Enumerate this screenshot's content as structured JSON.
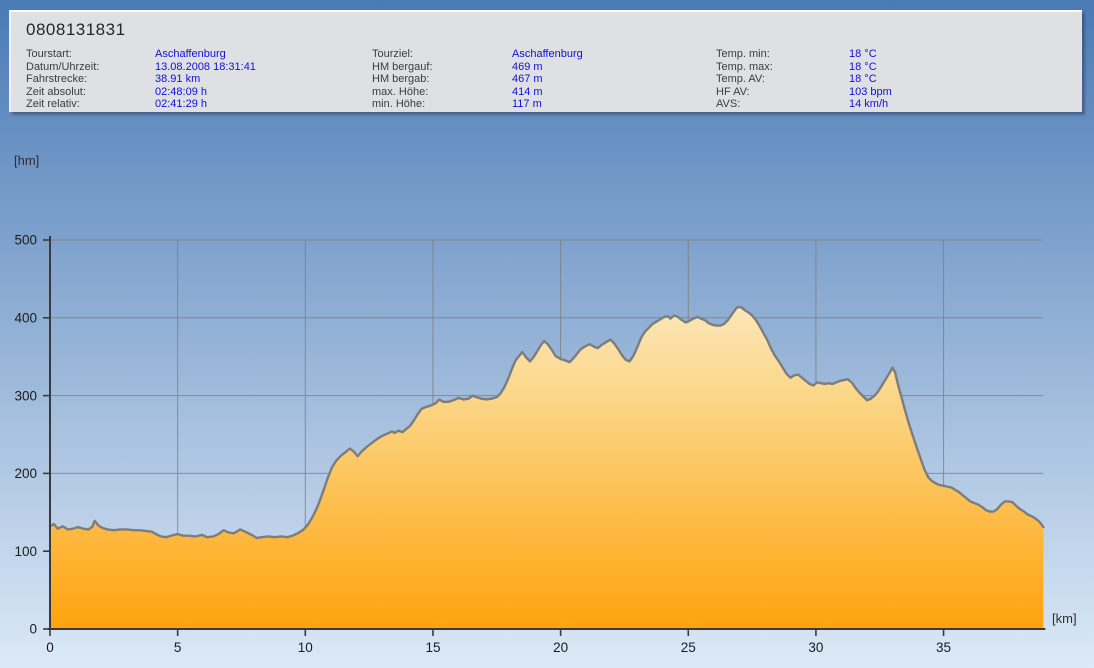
{
  "header": {
    "title": "0808131831",
    "columns": [
      {
        "rows": [
          {
            "label": "Tourstart:",
            "value": "Aschaffenburg"
          },
          {
            "label": "Datum/Uhrzeit:",
            "value": "13.08.2008 18:31:41"
          },
          {
            "label": "Fahrstrecke:",
            "value": "38.91 km"
          },
          {
            "label": "Zeit absolut:",
            "value": "02:48:09 h"
          },
          {
            "label": "Zeit relativ:",
            "value": "02:41:29 h"
          }
        ]
      },
      {
        "rows": [
          {
            "label": "Tourziel:",
            "value": "Aschaffenburg"
          },
          {
            "label": "HM bergauf:",
            "value": "469 m"
          },
          {
            "label": "HM bergab:",
            "value": "467 m"
          },
          {
            "label": "max. Höhe:",
            "value": "414 m"
          },
          {
            "label": "min. Höhe:",
            "value": "117 m"
          }
        ]
      },
      {
        "rows": [
          {
            "label": "Temp. min:",
            "value": "18 °C"
          },
          {
            "label": "Temp. max:",
            "value": "18 °C"
          },
          {
            "label": "Temp. AV:",
            "value": "18 °C"
          },
          {
            "label": "HF AV:",
            "value": "103 bpm"
          },
          {
            "label": "AVS:",
            "value": "14 km/h"
          }
        ]
      }
    ]
  },
  "chart_data": {
    "type": "area",
    "title": "",
    "xlabel": "[km]",
    "ylabel": "[hm]",
    "xlim": [
      0,
      38.91
    ],
    "ylim": [
      0,
      500
    ],
    "x_ticks": [
      0,
      5,
      10,
      15,
      20,
      25,
      30,
      35
    ],
    "y_ticks": [
      0,
      100,
      200,
      300,
      400,
      500
    ],
    "grid": true,
    "legend_position": "none",
    "series": [
      {
        "name": "elevation-profile",
        "points": [
          [
            0,
            132
          ],
          [
            0.15,
            135
          ],
          [
            0.3,
            129
          ],
          [
            0.5,
            132
          ],
          [
            0.7,
            128
          ],
          [
            0.9,
            129
          ],
          [
            1.1,
            131
          ],
          [
            1.3,
            129
          ],
          [
            1.5,
            128
          ],
          [
            1.65,
            131
          ],
          [
            1.75,
            139
          ],
          [
            1.9,
            133
          ],
          [
            2.05,
            130
          ],
          [
            2.25,
            128
          ],
          [
            2.5,
            127
          ],
          [
            2.75,
            128
          ],
          [
            3.0,
            128
          ],
          [
            3.25,
            127
          ],
          [
            3.5,
            127
          ],
          [
            3.75,
            126
          ],
          [
            4.0,
            125
          ],
          [
            4.15,
            122
          ],
          [
            4.35,
            119
          ],
          [
            4.55,
            118
          ],
          [
            4.75,
            120
          ],
          [
            5.0,
            122
          ],
          [
            5.2,
            120
          ],
          [
            5.45,
            120
          ],
          [
            5.7,
            119
          ],
          [
            5.95,
            121
          ],
          [
            6.15,
            118
          ],
          [
            6.4,
            119
          ],
          [
            6.6,
            122
          ],
          [
            6.8,
            127
          ],
          [
            7.0,
            124
          ],
          [
            7.2,
            123
          ],
          [
            7.45,
            128
          ],
          [
            7.65,
            125
          ],
          [
            7.9,
            121
          ],
          [
            8.1,
            117
          ],
          [
            8.3,
            118
          ],
          [
            8.55,
            119
          ],
          [
            8.8,
            118
          ],
          [
            9.05,
            119
          ],
          [
            9.3,
            118
          ],
          [
            9.5,
            120
          ],
          [
            9.7,
            123
          ],
          [
            9.9,
            127
          ],
          [
            10.1,
            134
          ],
          [
            10.3,
            145
          ],
          [
            10.5,
            159
          ],
          [
            10.7,
            177
          ],
          [
            10.9,
            196
          ],
          [
            11.05,
            208
          ],
          [
            11.2,
            216
          ],
          [
            11.4,
            223
          ],
          [
            11.6,
            228
          ],
          [
            11.75,
            232
          ],
          [
            11.9,
            228
          ],
          [
            12.05,
            222
          ],
          [
            12.2,
            228
          ],
          [
            12.4,
            234
          ],
          [
            12.6,
            239
          ],
          [
            12.8,
            244
          ],
          [
            13.0,
            248
          ],
          [
            13.2,
            251
          ],
          [
            13.4,
            254
          ],
          [
            13.5,
            252
          ],
          [
            13.65,
            255
          ],
          [
            13.8,
            253
          ],
          [
            13.95,
            257
          ],
          [
            14.1,
            261
          ],
          [
            14.25,
            268
          ],
          [
            14.4,
            276
          ],
          [
            14.55,
            283
          ],
          [
            14.7,
            285
          ],
          [
            14.9,
            287
          ],
          [
            15.1,
            290
          ],
          [
            15.25,
            295
          ],
          [
            15.4,
            292
          ],
          [
            15.6,
            292
          ],
          [
            15.8,
            294
          ],
          [
            16.0,
            297
          ],
          [
            16.2,
            295
          ],
          [
            16.4,
            296
          ],
          [
            16.55,
            300
          ],
          [
            16.7,
            298
          ],
          [
            16.9,
            296
          ],
          [
            17.1,
            295
          ],
          [
            17.3,
            296
          ],
          [
            17.5,
            298
          ],
          [
            17.65,
            303
          ],
          [
            17.8,
            311
          ],
          [
            17.95,
            322
          ],
          [
            18.1,
            335
          ],
          [
            18.25,
            346
          ],
          [
            18.4,
            352
          ],
          [
            18.5,
            356
          ],
          [
            18.65,
            349
          ],
          [
            18.8,
            344
          ],
          [
            18.95,
            350
          ],
          [
            19.1,
            358
          ],
          [
            19.25,
            366
          ],
          [
            19.35,
            370
          ],
          [
            19.5,
            366
          ],
          [
            19.65,
            359
          ],
          [
            19.8,
            351
          ],
          [
            20.0,
            347
          ],
          [
            20.2,
            345
          ],
          [
            20.35,
            343
          ],
          [
            20.5,
            348
          ],
          [
            20.65,
            354
          ],
          [
            20.8,
            360
          ],
          [
            21.0,
            364
          ],
          [
            21.15,
            366
          ],
          [
            21.3,
            363
          ],
          [
            21.45,
            361
          ],
          [
            21.6,
            365
          ],
          [
            21.75,
            368
          ],
          [
            21.95,
            372
          ],
          [
            22.1,
            367
          ],
          [
            22.25,
            360
          ],
          [
            22.4,
            352
          ],
          [
            22.55,
            346
          ],
          [
            22.7,
            344
          ],
          [
            22.85,
            351
          ],
          [
            23.0,
            362
          ],
          [
            23.15,
            374
          ],
          [
            23.3,
            382
          ],
          [
            23.45,
            387
          ],
          [
            23.6,
            392
          ],
          [
            23.75,
            395
          ],
          [
            23.9,
            398
          ],
          [
            24.05,
            401
          ],
          [
            24.2,
            402
          ],
          [
            24.3,
            399
          ],
          [
            24.45,
            403
          ],
          [
            24.6,
            401
          ],
          [
            24.75,
            397
          ],
          [
            24.9,
            394
          ],
          [
            25.05,
            396
          ],
          [
            25.2,
            399
          ],
          [
            25.35,
            401
          ],
          [
            25.5,
            399
          ],
          [
            25.65,
            397
          ],
          [
            25.8,
            393
          ],
          [
            25.95,
            391
          ],
          [
            26.1,
            390
          ],
          [
            26.25,
            390
          ],
          [
            26.4,
            392
          ],
          [
            26.55,
            397
          ],
          [
            26.7,
            404
          ],
          [
            26.85,
            411
          ],
          [
            26.95,
            414
          ],
          [
            27.1,
            413
          ],
          [
            27.2,
            410
          ],
          [
            27.35,
            407
          ],
          [
            27.5,
            403
          ],
          [
            27.65,
            397
          ],
          [
            27.8,
            389
          ],
          [
            27.95,
            380
          ],
          [
            28.1,
            371
          ],
          [
            28.25,
            360
          ],
          [
            28.4,
            351
          ],
          [
            28.55,
            344
          ],
          [
            28.7,
            336
          ],
          [
            28.85,
            328
          ],
          [
            29.0,
            323
          ],
          [
            29.15,
            326
          ],
          [
            29.3,
            327
          ],
          [
            29.45,
            323
          ],
          [
            29.6,
            319
          ],
          [
            29.75,
            315
          ],
          [
            29.9,
            313
          ],
          [
            30.05,
            317
          ],
          [
            30.2,
            316
          ],
          [
            30.35,
            315
          ],
          [
            30.5,
            316
          ],
          [
            30.65,
            315
          ],
          [
            30.8,
            317
          ],
          [
            30.95,
            319
          ],
          [
            31.1,
            320
          ],
          [
            31.25,
            321
          ],
          [
            31.4,
            317
          ],
          [
            31.55,
            310
          ],
          [
            31.7,
            304
          ],
          [
            31.85,
            299
          ],
          [
            32.0,
            294
          ],
          [
            32.15,
            296
          ],
          [
            32.3,
            300
          ],
          [
            32.45,
            306
          ],
          [
            32.6,
            314
          ],
          [
            32.75,
            322
          ],
          [
            32.9,
            330
          ],
          [
            33.0,
            336
          ],
          [
            33.1,
            330
          ],
          [
            33.2,
            316
          ],
          [
            33.35,
            298
          ],
          [
            33.5,
            280
          ],
          [
            33.65,
            263
          ],
          [
            33.8,
            248
          ],
          [
            33.95,
            233
          ],
          [
            34.1,
            219
          ],
          [
            34.25,
            205
          ],
          [
            34.4,
            195
          ],
          [
            34.55,
            190
          ],
          [
            34.7,
            187
          ],
          [
            34.85,
            185
          ],
          [
            35.0,
            184
          ],
          [
            35.15,
            183
          ],
          [
            35.3,
            182
          ],
          [
            35.45,
            179
          ],
          [
            35.6,
            176
          ],
          [
            35.75,
            172
          ],
          [
            35.9,
            168
          ],
          [
            36.05,
            164
          ],
          [
            36.2,
            162
          ],
          [
            36.35,
            160
          ],
          [
            36.5,
            157
          ],
          [
            36.65,
            153
          ],
          [
            36.8,
            151
          ],
          [
            36.95,
            151
          ],
          [
            37.1,
            154
          ],
          [
            37.25,
            160
          ],
          [
            37.4,
            164
          ],
          [
            37.55,
            164
          ],
          [
            37.7,
            163
          ],
          [
            37.85,
            158
          ],
          [
            38.0,
            154
          ],
          [
            38.15,
            151
          ],
          [
            38.3,
            147
          ],
          [
            38.45,
            145
          ],
          [
            38.6,
            142
          ],
          [
            38.75,
            138
          ],
          [
            38.91,
            131
          ]
        ]
      }
    ],
    "colors": {
      "fill_top": "#FCF2DC",
      "fill_mid": "#FBD584",
      "fill_bottom": "#FFA30D",
      "line": "#7D7D7D",
      "grid": "#7E7E78",
      "axis": "#3A3A3A",
      "tick_text": "#1C1C1C",
      "bg_top": "#4A7AB5",
      "bg_bottom": "#DCE9F7",
      "panel_bg": "#DFE0E4",
      "value_text": "#1010D9",
      "label_text": "#3C3C3C"
    }
  }
}
